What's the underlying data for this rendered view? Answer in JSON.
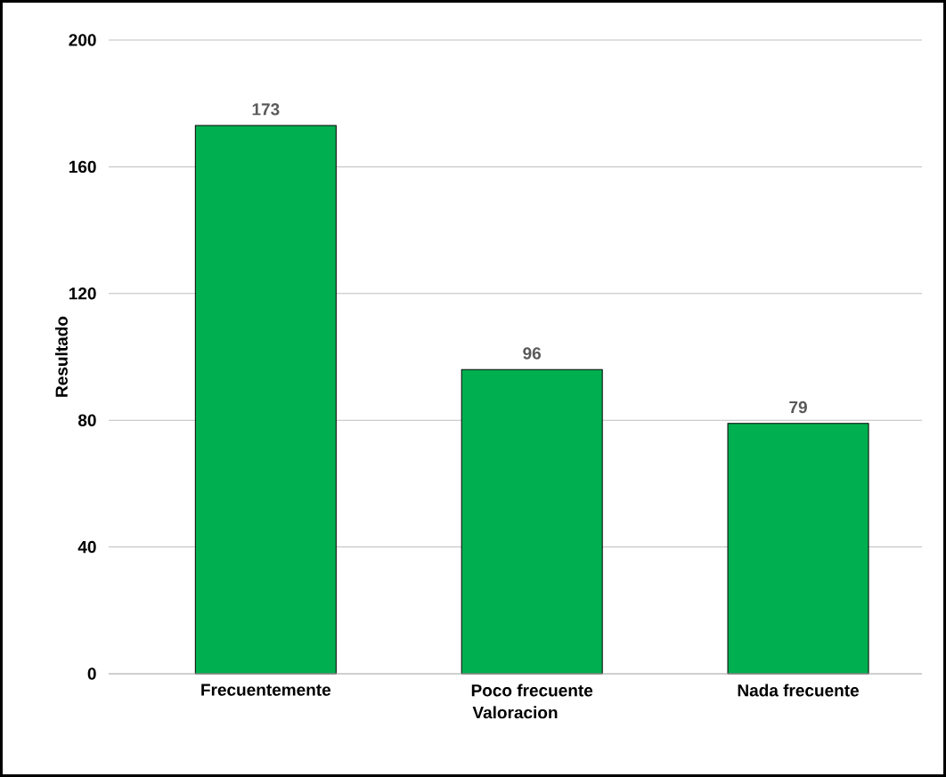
{
  "chart_data": {
    "type": "bar",
    "xlabel": "Valoracion",
    "ylabel": "Resultado",
    "categories": [
      "Frecuentemente",
      "Poco frecuente",
      "Nada frecuente"
    ],
    "values": [
      173,
      96,
      79
    ],
    "color": "#00b050",
    "ylim": [
      0,
      200
    ],
    "yticks": [
      0,
      40,
      80,
      120,
      160,
      200
    ],
    "grid": "y",
    "data_labels": true
  }
}
